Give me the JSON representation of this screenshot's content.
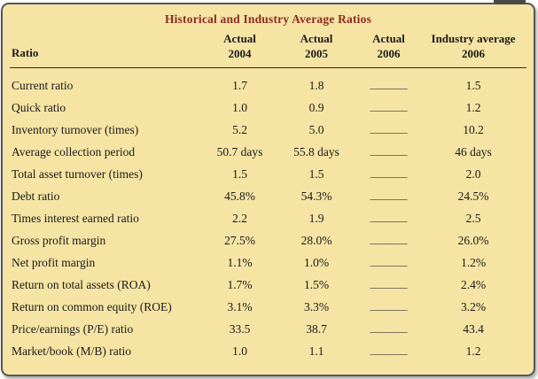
{
  "title": "Historical and Industry Average Ratios",
  "header": {
    "ratio": "Ratio",
    "cols": [
      {
        "line1": "Actual",
        "line2": "2004"
      },
      {
        "line1": "Actual",
        "line2": "2005"
      },
      {
        "line1": "Actual",
        "line2": "2006"
      },
      {
        "line1": "Industry average",
        "line2": "2006"
      }
    ]
  },
  "blank_placeholder": "_______",
  "rows": [
    {
      "ratio": "Current ratio",
      "actual_2004": "1.7",
      "actual_2005": "1.8",
      "actual_2006": "",
      "industry_2006": "1.5"
    },
    {
      "ratio": "Quick ratio",
      "actual_2004": "1.0",
      "actual_2005": "0.9",
      "actual_2006": "",
      "industry_2006": "1.2"
    },
    {
      "ratio": "Inventory turnover (times)",
      "actual_2004": "5.2",
      "actual_2005": "5.0",
      "actual_2006": "",
      "industry_2006": "10.2"
    },
    {
      "ratio": "Average collection period",
      "actual_2004": "50.7 days",
      "actual_2005": "55.8 days",
      "actual_2006": "",
      "industry_2006": "46 days"
    },
    {
      "ratio": "Total asset turnover (times)",
      "actual_2004": "1.5",
      "actual_2005": "1.5",
      "actual_2006": "",
      "industry_2006": "2.0"
    },
    {
      "ratio": "Debt ratio",
      "actual_2004": "45.8%",
      "actual_2005": "54.3%",
      "actual_2006": "",
      "industry_2006": "24.5%"
    },
    {
      "ratio": "Times interest earned ratio",
      "actual_2004": "2.2",
      "actual_2005": "1.9",
      "actual_2006": "",
      "industry_2006": "2.5"
    },
    {
      "ratio": "Gross profit margin",
      "actual_2004": "27.5%",
      "actual_2005": "28.0%",
      "actual_2006": "",
      "industry_2006": "26.0%"
    },
    {
      "ratio": "Net profit margin",
      "actual_2004": "1.1%",
      "actual_2005": "1.0%",
      "actual_2006": "",
      "industry_2006": "1.2%"
    },
    {
      "ratio": "Return on total assets (ROA)",
      "actual_2004": "1.7%",
      "actual_2005": "1.5%",
      "actual_2006": "",
      "industry_2006": "2.4%"
    },
    {
      "ratio": "Return on common equity (ROE)",
      "actual_2004": "3.1%",
      "actual_2005": "3.3%",
      "actual_2006": "",
      "industry_2006": "3.2%"
    },
    {
      "ratio": "Price/earnings (P/E) ratio",
      "actual_2004": "33.5",
      "actual_2005": "38.7",
      "actual_2006": "",
      "industry_2006": "43.4"
    },
    {
      "ratio": "Market/book (M/B) ratio",
      "actual_2004": "1.0",
      "actual_2005": "1.1",
      "actual_2006": "",
      "industry_2006": "1.2"
    }
  ],
  "colors": {
    "table_background": "#f5e4a4",
    "title_text": "#8e2b21",
    "body_text": "#1a1a1a",
    "frame_border": "#55565a"
  }
}
